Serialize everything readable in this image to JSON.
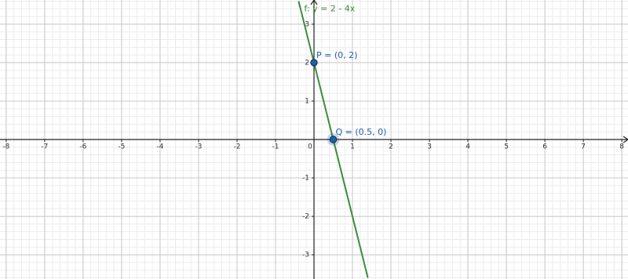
{
  "chart_data": {
    "type": "line",
    "series": [
      {
        "name": "f: y = 2 - 4x",
        "color": "#3d8b3d",
        "x": [
          -0.4,
          1.4
        ],
        "values": [
          3.6,
          -3.6
        ]
      }
    ],
    "points": [
      {
        "label": "P = (0, 2)",
        "x": 0,
        "y": 2,
        "color": "#1f5fa8"
      },
      {
        "label": "Q = (0.5, 0)",
        "x": 0.5,
        "y": 0,
        "color": "#1f5fa8"
      }
    ],
    "xlim": [
      -8.16,
      8.16
    ],
    "ylim": [
      -3.63,
      3.63
    ],
    "xticks": [
      -8,
      -7,
      -6,
      -5,
      -4,
      -3,
      -2,
      -1,
      0,
      1,
      2,
      3,
      4,
      5,
      6,
      7,
      8
    ],
    "yticks": [
      -3,
      -2,
      -1,
      1,
      2,
      3
    ],
    "grid": true,
    "minor_grid_step": 0.2
  }
}
